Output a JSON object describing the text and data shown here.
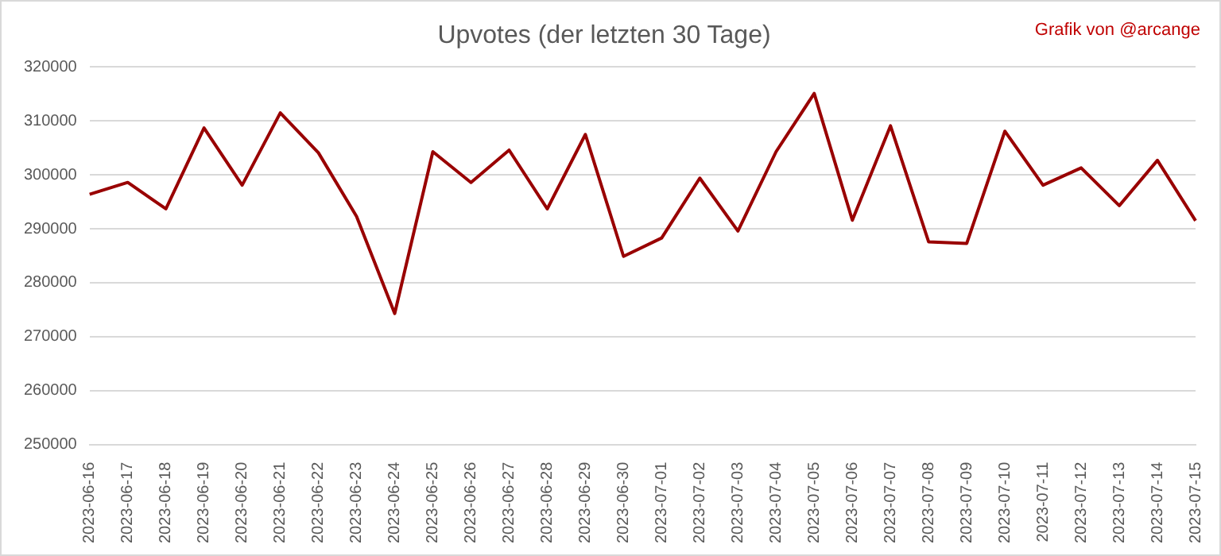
{
  "chart_data": {
    "type": "line",
    "title": "Upvotes (der letzten 30 Tage)",
    "annotations": [
      "Grafik von @arcange"
    ],
    "categories": [
      "2023-06-16",
      "2023-06-17",
      "2023-06-18",
      "2023-06-19",
      "2023-06-20",
      "2023-06-21",
      "2023-06-22",
      "2023-06-23",
      "2023-06-24",
      "2023-06-25",
      "2023-06-26",
      "2023-06-27",
      "2023-06-28",
      "2023-06-29",
      "2023-06-30",
      "2023-07-01",
      "2023-07-02",
      "2023-07-03",
      "2023-07-04",
      "2023-07-05",
      "2023-07-06",
      "2023-07-07",
      "2023-07-08",
      "2023-07-09",
      "2023-07-10",
      "2023-07-11",
      "2023-07-12",
      "2023-07-13",
      "2023-07-14",
      "2023-07-15"
    ],
    "series": [
      {
        "color": "#990000",
        "values": [
          296400,
          298600,
          293700,
          308700,
          298100,
          311500,
          304100,
          292300,
          274300,
          304300,
          298600,
          304600,
          293700,
          307500,
          284900,
          288300,
          299400,
          289600,
          304300,
          315100,
          291600,
          309100,
          287600,
          287300,
          308100,
          298100,
          301300,
          294300,
          302700,
          291500
        ]
      }
    ],
    "ylim": [
      250000,
      320000
    ],
    "yticks": [
      250000,
      260000,
      270000,
      280000,
      290000,
      300000,
      310000,
      320000
    ],
    "grid": "y",
    "legend": false,
    "marker": "none",
    "line_style": "solid"
  }
}
